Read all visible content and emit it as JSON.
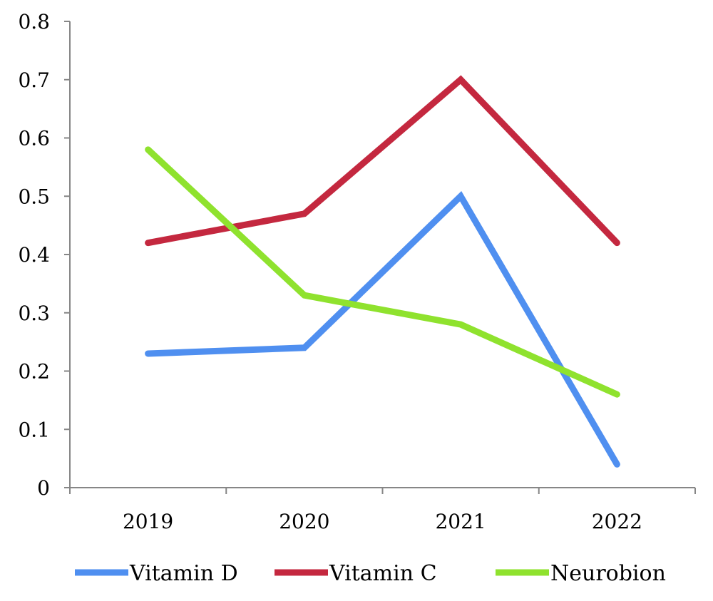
{
  "chart_data": {
    "type": "line",
    "categories": [
      "2019",
      "2020",
      "2021",
      "2022"
    ],
    "series": [
      {
        "name": "Vitamin D",
        "values": [
          0.23,
          0.24,
          0.5,
          0.04
        ],
        "color": "#4f8ff0"
      },
      {
        "name": "Vitamin C",
        "values": [
          0.42,
          0.47,
          0.7,
          0.42
        ],
        "color": "#c4283f"
      },
      {
        "name": "Neurobion",
        "values": [
          0.58,
          0.33,
          0.28,
          0.16
        ],
        "color": "#8fe22e"
      }
    ],
    "ylim": [
      0,
      0.8
    ],
    "yticks": [
      "0",
      "0.1",
      "0.2",
      "0.3",
      "0.4",
      "0.5",
      "0.6",
      "0.7",
      "0.8"
    ],
    "grid": false,
    "legend_position": "bottom"
  }
}
